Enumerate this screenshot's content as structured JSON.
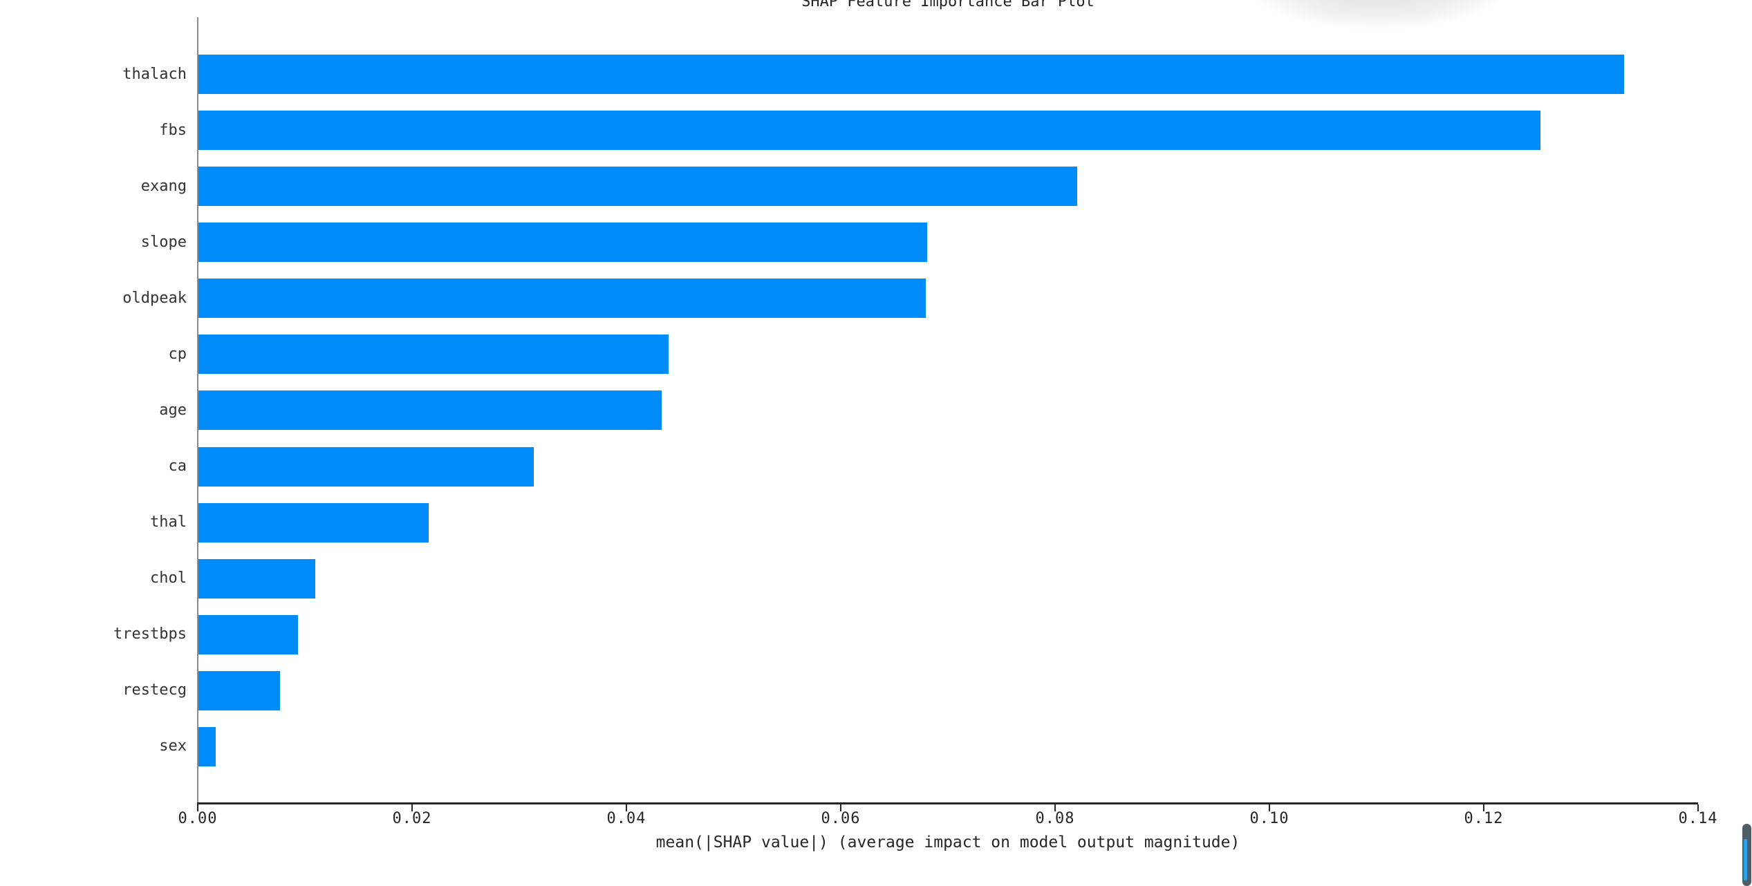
{
  "chart_data": {
    "type": "bar",
    "orientation": "horizontal",
    "title": "SHAP Feature Importance Bar Plot",
    "xlabel": "mean(|SHAP value|) (average impact on model output magnitude)",
    "ylabel": "",
    "categories": [
      "thalach",
      "fbs",
      "exang",
      "slope",
      "oldpeak",
      "cp",
      "age",
      "ca",
      "thal",
      "chol",
      "trestbps",
      "restecg",
      "sex"
    ],
    "values": [
      0.133,
      0.1252,
      0.082,
      0.068,
      0.0679,
      0.0439,
      0.0432,
      0.0313,
      0.0215,
      0.0109,
      0.0093,
      0.0076,
      0.0016
    ],
    "xlim": [
      0,
      0.14
    ],
    "xticks": [
      "0.00",
      "0.02",
      "0.04",
      "0.06",
      "0.08",
      "0.10",
      "0.12",
      "0.14"
    ],
    "grid": false,
    "legend": null
  },
  "colors": {
    "bar": "#008bfa",
    "axis_line": "#262626",
    "left_spine": "#8b8b8b",
    "text": "#333333",
    "scrollbar_thumb": "#4e5c66",
    "scrollbar_progress": "#2da0e8",
    "background": "#ffffff"
  },
  "scrollbar": {
    "orientation": "vertical",
    "position": "bottom-right"
  }
}
